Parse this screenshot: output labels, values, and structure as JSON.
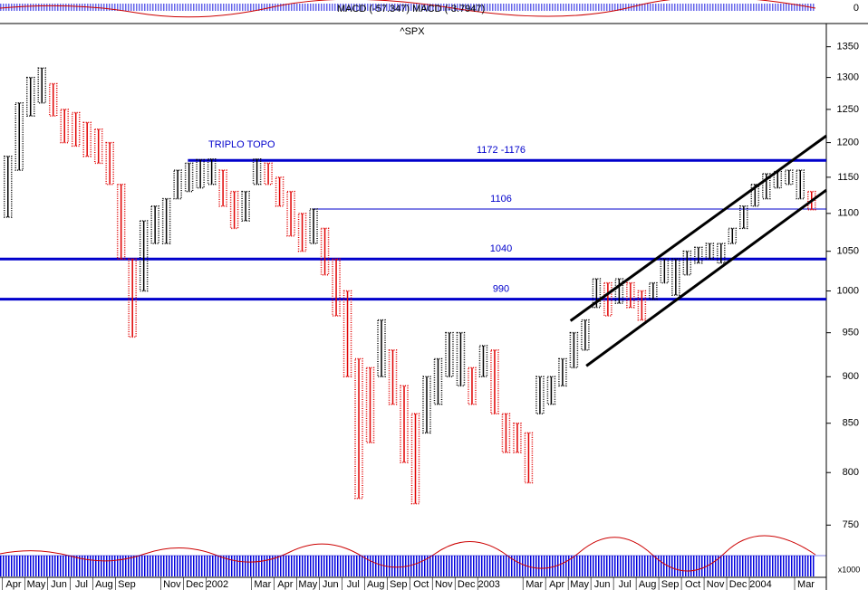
{
  "chart_data": {
    "type": "ohlc",
    "title": "^SPX",
    "indicator_label": "MACD (-57.347) MACD (-3.7947)",
    "indicator_tick": 0,
    "volume_label": "x1000",
    "annotation": "TRIPLO TOPO",
    "log_scale": true,
    "x": [
      0.25,
      0.75,
      1.25,
      1.75,
      2.25,
      2.75,
      3.25,
      3.75,
      4.25,
      4.75,
      5.25,
      5.75,
      6.25,
      6.75,
      7.25,
      7.75,
      8.25,
      8.75,
      9.25,
      9.75,
      10.25,
      10.75,
      11.25,
      11.75,
      12.25,
      12.75,
      13.25,
      13.75,
      14.25,
      14.75,
      15.25,
      15.75,
      16.25,
      16.75,
      17.25,
      17.75,
      18.25,
      18.75,
      19.25,
      19.75,
      20.25,
      20.75,
      21.25,
      21.75,
      22.25,
      22.75,
      23.25,
      23.75,
      24.25,
      24.75,
      25.25,
      25.75,
      26.25,
      26.75,
      27.25,
      27.75,
      28.25,
      28.75,
      29.25,
      29.75,
      30.25,
      30.75,
      31.25,
      31.75,
      32.25,
      32.75,
      33.25,
      33.75,
      34.25,
      34.75,
      35.25,
      35.75
    ],
    "high": [
      1180,
      1260,
      1300,
      1315,
      1290,
      1250,
      1245,
      1230,
      1220,
      1200,
      1140,
      1040,
      1090,
      1110,
      1120,
      1160,
      1170,
      1175,
      1176,
      1160,
      1130,
      1130,
      1176,
      1170,
      1150,
      1130,
      1100,
      1106,
      1080,
      1040,
      1000,
      920,
      910,
      965,
      930,
      890,
      860,
      900,
      920,
      950,
      950,
      910,
      935,
      930,
      860,
      850,
      840,
      900,
      900,
      920,
      950,
      965,
      1015,
      1010,
      1015,
      1010,
      1000,
      1010,
      1040,
      1040,
      1050,
      1055,
      1060,
      1060,
      1080,
      1110,
      1140,
      1155,
      1158,
      1160,
      1160,
      1130
    ],
    "low": [
      1095,
      1160,
      1240,
      1260,
      1240,
      1200,
      1195,
      1180,
      1170,
      1140,
      1040,
      945,
      1000,
      1060,
      1060,
      1120,
      1130,
      1135,
      1140,
      1110,
      1080,
      1090,
      1140,
      1140,
      1110,
      1070,
      1050,
      1060,
      1020,
      970,
      900,
      775,
      830,
      900,
      870,
      810,
      770,
      840,
      870,
      900,
      890,
      870,
      900,
      860,
      820,
      820,
      790,
      860,
      870,
      890,
      910,
      930,
      980,
      970,
      985,
      980,
      965,
      990,
      1010,
      995,
      1020,
      1035,
      1040,
      1035,
      1060,
      1080,
      1110,
      1120,
      1135,
      1140,
      1120,
      1105
    ],
    "up_color": "#000000",
    "down_color": "#e00000",
    "levels": [
      {
        "label": "1172 -1176",
        "value": 1174,
        "from": 8.2,
        "thick": true
      },
      {
        "label": "1106",
        "value": 1106,
        "from": 13.7,
        "thick": false
      },
      {
        "label": "1040",
        "value": 1040,
        "from": -0.1,
        "thick": true
      },
      {
        "label": "990",
        "value": 990,
        "from": -0.1,
        "thick": true
      }
    ],
    "level_color": "#0000cc",
    "trendlines": [
      {
        "x": [
          25.1,
          36.4
        ],
        "y": [
          964,
          1210
        ]
      },
      {
        "x": [
          25.8,
          36.4
        ],
        "y": [
          912,
          1132
        ]
      }
    ],
    "xlim": [
      -0.1,
      36.4
    ],
    "ylim": [
      724,
      1386
    ],
    "yticks": [
      750,
      800,
      850,
      900,
      950,
      1000,
      1050,
      1100,
      1150,
      1200,
      1250,
      1300,
      1350
    ],
    "xticks": [
      {
        "value": 0,
        "label": "Apr"
      },
      {
        "value": 1,
        "label": "May"
      },
      {
        "value": 2,
        "label": "Jun"
      },
      {
        "value": 3,
        "label": "Jul"
      },
      {
        "value": 4,
        "label": "Aug"
      },
      {
        "value": 5,
        "label": "Sep"
      },
      {
        "value": 7,
        "label": "Nov"
      },
      {
        "value": 8,
        "label": "Dec"
      },
      {
        "value": 9,
        "label": "2002"
      },
      {
        "value": 11,
        "label": "Mar"
      },
      {
        "value": 12,
        "label": "Apr"
      },
      {
        "value": 13,
        "label": "May"
      },
      {
        "value": 14,
        "label": "Jun"
      },
      {
        "value": 15,
        "label": "Jul"
      },
      {
        "value": 16,
        "label": "Aug"
      },
      {
        "value": 17,
        "label": "Sep"
      },
      {
        "value": 18,
        "label": "Oct"
      },
      {
        "value": 19,
        "label": "Nov"
      },
      {
        "value": 20,
        "label": "Dec"
      },
      {
        "value": 21,
        "label": "2003"
      },
      {
        "value": 23,
        "label": "Mar"
      },
      {
        "value": 24,
        "label": "Apr"
      },
      {
        "value": 25,
        "label": "May"
      },
      {
        "value": 26,
        "label": "Jun"
      },
      {
        "value": 27,
        "label": "Jul"
      },
      {
        "value": 28,
        "label": "Aug"
      },
      {
        "value": 29,
        "label": "Sep"
      },
      {
        "value": 30,
        "label": "Oct"
      },
      {
        "value": 31,
        "label": "Nov"
      },
      {
        "value": 32,
        "label": "Dec"
      },
      {
        "value": 33,
        "label": "2004"
      },
      {
        "value": 35,
        "label": "Mar"
      }
    ]
  }
}
